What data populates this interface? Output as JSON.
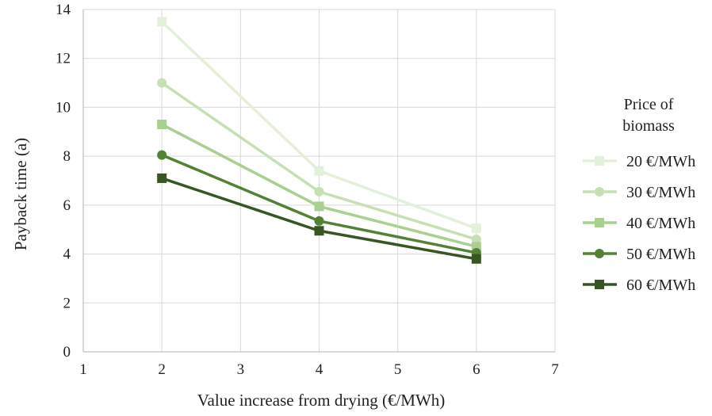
{
  "chart_data": {
    "type": "line",
    "xlabel": "Value increase from drying (€/MWh)",
    "ylabel": "Payback time (a)",
    "xlim": [
      1,
      7
    ],
    "ylim": [
      0,
      14
    ],
    "x_ticks": [
      1,
      2,
      3,
      4,
      5,
      6,
      7
    ],
    "y_ticks": [
      0,
      2,
      4,
      6,
      8,
      10,
      12,
      14
    ],
    "x_tick_labels": [
      "1",
      "2",
      "3",
      "4",
      "5",
      "6",
      "7"
    ],
    "y_tick_labels": [
      "0",
      "2",
      "4",
      "6",
      "8",
      "10",
      "12",
      "14"
    ],
    "grid": true,
    "legend_title": [
      "Price of",
      "biomass"
    ],
    "legend_position": "right",
    "x": [
      2,
      4,
      6
    ],
    "series": [
      {
        "name": "20 €/MWh",
        "values": [
          13.5,
          7.4,
          5.05
        ],
        "color": "#e3f0da",
        "marker": "square"
      },
      {
        "name": "30 €/MWh",
        "values": [
          11.0,
          6.55,
          4.6
        ],
        "color": "#c6e0b4",
        "marker": "circle"
      },
      {
        "name": "40 €/MWh",
        "values": [
          9.3,
          5.95,
          4.3
        ],
        "color": "#a9d08e",
        "marker": "square"
      },
      {
        "name": "50 €/MWh",
        "values": [
          8.05,
          5.35,
          4.05
        ],
        "color": "#548235",
        "marker": "circle"
      },
      {
        "name": "60 €/MWh",
        "values": [
          7.1,
          4.95,
          3.8
        ],
        "color": "#375623",
        "marker": "square"
      }
    ]
  }
}
